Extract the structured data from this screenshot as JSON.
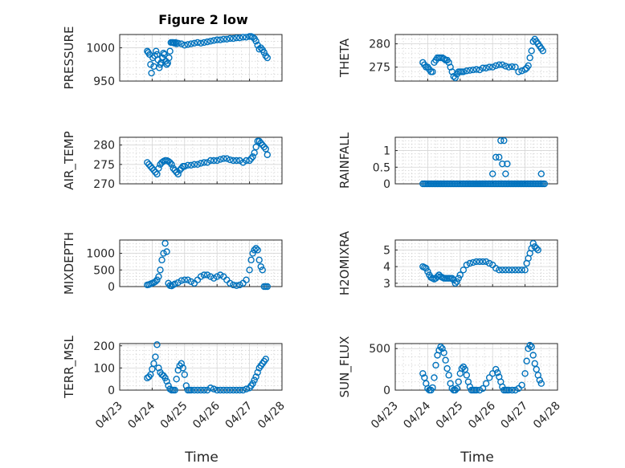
{
  "figure": {
    "title": "Figure 2 low",
    "xlabel": "Time",
    "marker_color": "#0072BD",
    "x_tick_labels": [
      "04/23",
      "04/24",
      "04/25",
      "04/26",
      "04/27",
      "04/28"
    ]
  },
  "chart_data": [
    {
      "type": "scatter",
      "name": "pressure",
      "ylabel": "PRESSURE",
      "title": "Figure 2 low",
      "xlim": [
        0,
        5
      ],
      "ylim": [
        950,
        1020
      ],
      "yticks": [
        950,
        1000
      ],
      "x_tick_labels": [
        "",
        "",
        "",
        "",
        "",
        ""
      ],
      "x": [
        0.85,
        0.88,
        0.92,
        0.95,
        0.98,
        1.02,
        1.05,
        1.08,
        1.12,
        1.15,
        1.18,
        1.22,
        1.25,
        1.28,
        1.32,
        1.35,
        1.38,
        1.42,
        1.45,
        1.48,
        1.52,
        1.55,
        1.58,
        1.62,
        1.65,
        1.68,
        1.72,
        1.75,
        1.8,
        1.9,
        2.0,
        2.1,
        2.2,
        2.3,
        2.4,
        2.5,
        2.6,
        2.7,
        2.8,
        2.9,
        3.0,
        3.1,
        3.2,
        3.3,
        3.4,
        3.5,
        3.6,
        3.7,
        3.8,
        3.9,
        4.0,
        4.05,
        4.1,
        4.15,
        4.2,
        4.25,
        4.3,
        4.35,
        4.4,
        4.45,
        4.5,
        4.55
      ],
      "y": [
        995,
        993,
        990,
        975,
        962,
        985,
        972,
        988,
        995,
        990,
        982,
        970,
        975,
        978,
        985,
        992,
        990,
        980,
        975,
        977,
        985,
        995,
        1008,
        1008,
        1008,
        1007,
        1008,
        1006,
        1007,
        1006,
        1004,
        1005,
        1006,
        1007,
        1008,
        1007,
        1008,
        1009,
        1010,
        1011,
        1012,
        1012,
        1013,
        1013,
        1014,
        1014,
        1015,
        1015,
        1016,
        1016,
        1017,
        1017,
        1016,
        1014,
        1010,
        1004,
        998,
        1000,
        997,
        993,
        988,
        985
      ]
    },
    {
      "type": "scatter",
      "name": "theta",
      "ylabel": "THETA",
      "xlim": [
        0,
        5
      ],
      "ylim": [
        272,
        282
      ],
      "yticks": [
        275,
        280
      ],
      "x_tick_labels": [
        "",
        "",
        "",
        "",
        "",
        ""
      ],
      "x": [
        0.85,
        0.9,
        0.95,
        1.0,
        1.05,
        1.1,
        1.15,
        1.2,
        1.25,
        1.3,
        1.35,
        1.4,
        1.45,
        1.5,
        1.55,
        1.6,
        1.65,
        1.7,
        1.75,
        1.8,
        1.85,
        1.9,
        1.95,
        2.0,
        2.05,
        2.1,
        2.2,
        2.3,
        2.4,
        2.5,
        2.6,
        2.7,
        2.8,
        2.9,
        3.0,
        3.1,
        3.2,
        3.3,
        3.4,
        3.5,
        3.6,
        3.7,
        3.8,
        3.9,
        4.0,
        4.05,
        4.1,
        4.15,
        4.2,
        4.25,
        4.3,
        4.35,
        4.4,
        4.45,
        4.5,
        4.55
      ],
      "y": [
        276,
        275.5,
        275,
        275,
        274.5,
        274,
        274,
        276,
        276.5,
        277,
        277,
        277,
        277,
        276.8,
        276.5,
        276.5,
        276,
        275,
        274,
        273,
        272.7,
        273.5,
        274,
        274,
        274,
        274,
        274.2,
        274.3,
        274.4,
        274.5,
        274.4,
        274.8,
        274.8,
        275,
        275,
        275.3,
        275.5,
        275.5,
        275.2,
        275,
        275.1,
        275,
        274,
        274.2,
        274.5,
        274.8,
        275.3,
        277,
        278.5,
        280.5,
        281,
        280.5,
        280,
        279.5,
        279,
        278.5
      ]
    },
    {
      "type": "scatter",
      "name": "air_temp",
      "ylabel": "AIR_TEMP",
      "xlim": [
        0,
        5
      ],
      "ylim": [
        270,
        282
      ],
      "yticks": [
        270,
        275,
        280
      ],
      "x_tick_labels": [
        "",
        "",
        "",
        "",
        "",
        ""
      ],
      "x": [
        0.85,
        0.9,
        0.95,
        1.0,
        1.05,
        1.1,
        1.15,
        1.2,
        1.25,
        1.3,
        1.35,
        1.4,
        1.45,
        1.5,
        1.55,
        1.6,
        1.65,
        1.7,
        1.75,
        1.8,
        1.85,
        1.9,
        1.95,
        2.0,
        2.1,
        2.2,
        2.3,
        2.4,
        2.5,
        2.6,
        2.7,
        2.8,
        2.9,
        3.0,
        3.1,
        3.2,
        3.3,
        3.4,
        3.5,
        3.6,
        3.7,
        3.8,
        3.9,
        4.0,
        4.05,
        4.1,
        4.15,
        4.2,
        4.25,
        4.3,
        4.35,
        4.4,
        4.45,
        4.5,
        4.55
      ],
      "y": [
        275.5,
        275,
        274.5,
        274,
        273.5,
        273,
        272.5,
        274,
        275,
        275.5,
        275.8,
        276,
        276,
        275.8,
        275.5,
        275,
        274,
        273.5,
        273,
        272.5,
        273.5,
        274,
        274.5,
        274.5,
        274.8,
        274.8,
        275,
        275,
        275.3,
        275.5,
        275.5,
        276,
        276,
        276,
        276.3,
        276.5,
        276.5,
        276.2,
        276,
        276,
        276,
        275.5,
        276,
        276,
        276.5,
        277,
        278,
        279.5,
        281,
        281,
        280.5,
        280,
        279.5,
        279,
        277.5
      ]
    },
    {
      "type": "scatter",
      "name": "rainfall",
      "ylabel": "RAINFALL",
      "xlim": [
        0,
        5
      ],
      "ylim": [
        0,
        1.4
      ],
      "yticks": [
        0,
        0.5,
        1
      ],
      "ytick_labels": [
        "0",
        "0.5",
        "1"
      ],
      "x_tick_labels": [
        "",
        "",
        "",
        "",
        "",
        ""
      ],
      "x": [
        0.85,
        0.9,
        0.95,
        1.0,
        1.05,
        1.1,
        1.15,
        1.2,
        1.25,
        1.3,
        1.35,
        1.4,
        1.45,
        1.5,
        1.55,
        1.6,
        1.65,
        1.7,
        1.75,
        1.8,
        1.85,
        1.9,
        1.95,
        2.0,
        2.05,
        2.1,
        2.15,
        2.2,
        2.25,
        2.3,
        2.35,
        2.4,
        2.45,
        2.5,
        2.55,
        2.6,
        2.65,
        2.7,
        2.75,
        2.8,
        2.85,
        2.9,
        2.95,
        3.0,
        3.05,
        3.1,
        3.15,
        3.2,
        3.25,
        3.3,
        3.35,
        3.4,
        3.45,
        3.5,
        3.55,
        3.6,
        3.65,
        3.7,
        3.75,
        3.8,
        3.85,
        3.9,
        3.95,
        4.0,
        4.05,
        4.1,
        4.15,
        4.2,
        4.25,
        4.3,
        4.35,
        4.4,
        4.45,
        4.5,
        4.55,
        4.6,
        3.0,
        3.1,
        3.2,
        3.25,
        3.3,
        3.35,
        3.4,
        3.45,
        4.5
      ],
      "y": [
        0,
        0,
        0,
        0,
        0,
        0,
        0,
        0,
        0,
        0,
        0,
        0,
        0,
        0,
        0,
        0,
        0,
        0,
        0,
        0,
        0,
        0,
        0,
        0,
        0,
        0,
        0,
        0,
        0,
        0,
        0,
        0,
        0,
        0,
        0,
        0,
        0,
        0,
        0,
        0,
        0,
        0,
        0,
        0,
        0,
        0,
        0,
        0,
        0,
        0,
        0,
        0,
        0,
        0,
        0,
        0,
        0,
        0,
        0,
        0,
        0,
        0,
        0,
        0,
        0,
        0,
        0,
        0,
        0,
        0,
        0,
        0,
        0,
        0,
        0,
        0,
        0.3,
        0.8,
        0.8,
        1.3,
        0.6,
        1.3,
        0.3,
        0.6,
        0.3
      ]
    },
    {
      "type": "scatter",
      "name": "mixdepth",
      "ylabel": "MIXDEPTH",
      "xlim": [
        0,
        5
      ],
      "ylim": [
        0,
        1400
      ],
      "yticks": [
        0,
        500,
        1000
      ],
      "x_tick_labels": [
        "",
        "",
        "",
        "",
        "",
        ""
      ],
      "x": [
        0.85,
        0.9,
        0.95,
        1.0,
        1.05,
        1.1,
        1.15,
        1.2,
        1.25,
        1.3,
        1.35,
        1.4,
        1.45,
        1.5,
        1.55,
        1.6,
        1.65,
        1.7,
        1.8,
        1.9,
        2.0,
        2.1,
        2.2,
        2.3,
        2.4,
        2.5,
        2.6,
        2.7,
        2.8,
        2.9,
        3.0,
        3.1,
        3.2,
        3.3,
        3.4,
        3.5,
        3.6,
        3.7,
        3.8,
        3.9,
        4.0,
        4.05,
        4.1,
        4.15,
        4.2,
        4.25,
        4.3,
        4.35,
        4.4,
        4.45,
        4.5,
        4.55
      ],
      "y": [
        50,
        60,
        80,
        100,
        120,
        150,
        200,
        300,
        500,
        800,
        1000,
        1300,
        1050,
        100,
        30,
        20,
        50,
        80,
        120,
        180,
        200,
        200,
        150,
        100,
        200,
        300,
        350,
        350,
        300,
        250,
        300,
        350,
        300,
        200,
        100,
        50,
        30,
        50,
        100,
        200,
        500,
        800,
        1000,
        1100,
        1150,
        1100,
        800,
        600,
        500,
        0,
        0,
        0
      ]
    },
    {
      "type": "scatter",
      "name": "h2omixra",
      "ylabel": "H2OMIXRA",
      "xlim": [
        0,
        5
      ],
      "ylim": [
        2.8,
        5.6
      ],
      "yticks": [
        3,
        4,
        5
      ],
      "x_tick_labels": [
        "",
        "",
        "",
        "",
        "",
        ""
      ],
      "x": [
        0.85,
        0.9,
        0.95,
        1.0,
        1.05,
        1.1,
        1.15,
        1.2,
        1.25,
        1.3,
        1.35,
        1.4,
        1.45,
        1.5,
        1.55,
        1.6,
        1.65,
        1.7,
        1.75,
        1.8,
        1.85,
        1.9,
        1.95,
        2.0,
        2.1,
        2.2,
        2.3,
        2.4,
        2.5,
        2.6,
        2.7,
        2.8,
        2.9,
        3.0,
        3.1,
        3.2,
        3.3,
        3.4,
        3.5,
        3.6,
        3.7,
        3.8,
        3.9,
        4.0,
        4.05,
        4.1,
        4.15,
        4.2,
        4.25,
        4.3,
        4.35,
        4.4
      ],
      "y": [
        4.0,
        3.95,
        3.9,
        3.7,
        3.5,
        3.35,
        3.3,
        3.25,
        3.3,
        3.4,
        3.5,
        3.4,
        3.35,
        3.3,
        3.3,
        3.3,
        3.3,
        3.3,
        3.3,
        3.2,
        3.0,
        3.1,
        3.3,
        3.5,
        3.8,
        4.1,
        4.2,
        4.25,
        4.3,
        4.3,
        4.3,
        4.3,
        4.2,
        4.1,
        3.9,
        3.8,
        3.8,
        3.8,
        3.8,
        3.8,
        3.8,
        3.8,
        3.8,
        3.8,
        4.2,
        4.5,
        4.8,
        5.1,
        5.4,
        5.2,
        5.1,
        5.0
      ]
    },
    {
      "type": "scatter",
      "name": "terr_msl",
      "ylabel": "TERR_MSL",
      "xlim": [
        0,
        5
      ],
      "ylim": [
        0,
        210
      ],
      "yticks": [
        0,
        100,
        200
      ],
      "x_tick_labels": [
        "04/23",
        "04/24",
        "04/25",
        "04/26",
        "04/27",
        "04/28"
      ],
      "x": [
        0.85,
        0.9,
        0.95,
        1.0,
        1.05,
        1.1,
        1.15,
        1.2,
        1.25,
        1.3,
        1.35,
        1.4,
        1.45,
        1.5,
        1.55,
        1.6,
        1.65,
        1.7,
        1.75,
        1.8,
        1.85,
        1.9,
        1.95,
        2.0,
        2.05,
        2.1,
        2.15,
        2.2,
        2.3,
        2.4,
        2.5,
        2.6,
        2.7,
        2.8,
        2.9,
        3.0,
        3.1,
        3.2,
        3.3,
        3.4,
        3.5,
        3.6,
        3.7,
        3.8,
        3.9,
        4.0,
        4.05,
        4.1,
        4.15,
        4.2,
        4.25,
        4.3,
        4.35,
        4.4,
        4.45,
        4.5
      ],
      "y": [
        55,
        60,
        70,
        95,
        120,
        150,
        205,
        100,
        80,
        70,
        65,
        55,
        40,
        20,
        5,
        0,
        0,
        0,
        50,
        90,
        110,
        120,
        100,
        70,
        20,
        0,
        0,
        0,
        0,
        0,
        0,
        0,
        0,
        10,
        5,
        0,
        0,
        0,
        0,
        0,
        0,
        0,
        0,
        0,
        5,
        10,
        20,
        30,
        45,
        60,
        80,
        100,
        110,
        120,
        130,
        140
      ]
    },
    {
      "type": "scatter",
      "name": "sun_flux",
      "ylabel": "SUN_FLUX",
      "xlim": [
        0,
        5
      ],
      "ylim": [
        0,
        560
      ],
      "yticks": [
        0,
        500
      ],
      "x_tick_labels": [
        "04/23",
        "04/24",
        "04/25",
        "04/26",
        "04/27",
        "04/28"
      ],
      "x": [
        0.85,
        0.9,
        0.95,
        1.0,
        1.05,
        1.1,
        1.15,
        1.2,
        1.25,
        1.3,
        1.35,
        1.4,
        1.45,
        1.5,
        1.55,
        1.6,
        1.65,
        1.7,
        1.75,
        1.8,
        1.85,
        1.9,
        1.95,
        2.0,
        2.05,
        2.1,
        2.15,
        2.2,
        2.25,
        2.3,
        2.35,
        2.4,
        2.45,
        2.5,
        2.6,
        2.7,
        2.8,
        2.9,
        3.0,
        3.1,
        3.15,
        3.2,
        3.25,
        3.3,
        3.35,
        3.4,
        3.45,
        3.5,
        3.6,
        3.7,
        3.8,
        3.9,
        4.0,
        4.05,
        4.1,
        4.15,
        4.2,
        4.25,
        4.3,
        4.35,
        4.4,
        4.45,
        4.5
      ],
      "y": [
        200,
        150,
        80,
        20,
        0,
        0,
        30,
        150,
        300,
        420,
        480,
        520,
        500,
        450,
        360,
        260,
        180,
        80,
        20,
        0,
        0,
        20,
        100,
        200,
        260,
        280,
        250,
        180,
        100,
        40,
        0,
        0,
        0,
        0,
        0,
        20,
        80,
        150,
        200,
        250,
        210,
        160,
        100,
        40,
        0,
        0,
        0,
        0,
        0,
        0,
        20,
        60,
        200,
        350,
        500,
        540,
        520,
        420,
        320,
        250,
        180,
        120,
        80
      ]
    }
  ]
}
